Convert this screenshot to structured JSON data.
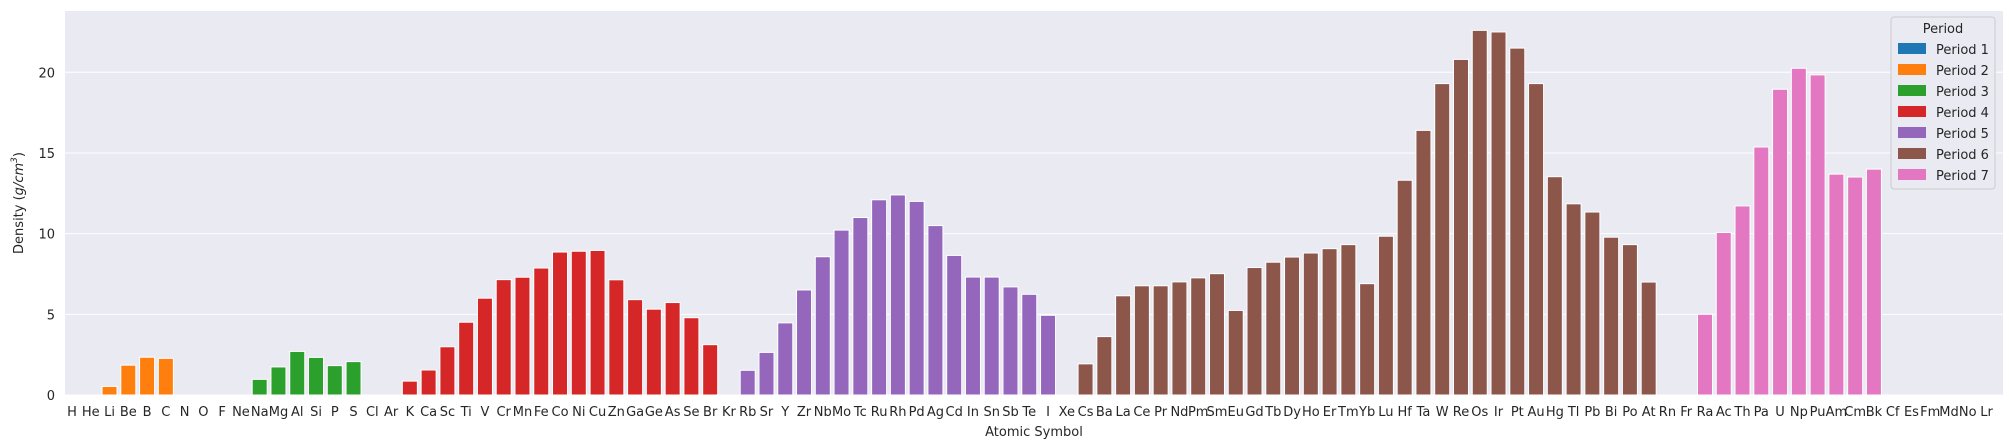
{
  "chart_data": {
    "type": "bar",
    "xlabel": "Atomic Symbol",
    "ylabel_prefix": "Density (",
    "ylabel_unit": "g/cm",
    "ylabel_exp": "3",
    "ylabel_suffix": ")",
    "ylim": [
      0,
      23.8
    ],
    "yticks": [
      0,
      5,
      10,
      15,
      20
    ],
    "grid": true,
    "legend": {
      "title": "Period",
      "placement": "top-right",
      "entries": [
        {
          "label": "Period 1",
          "period": 1,
          "color": "#1f77b4"
        },
        {
          "label": "Period 2",
          "period": 2,
          "color": "#ff7f0e"
        },
        {
          "label": "Period 3",
          "period": 3,
          "color": "#2ca02c"
        },
        {
          "label": "Period 4",
          "period": 4,
          "color": "#d62728"
        },
        {
          "label": "Period 5",
          "period": 5,
          "color": "#9467bd"
        },
        {
          "label": "Period 6",
          "period": 6,
          "color": "#8c564b"
        },
        {
          "label": "Period 7",
          "period": 7,
          "color": "#e377c2"
        }
      ]
    },
    "categories": [
      "H",
      "He",
      "Li",
      "Be",
      "B",
      "C",
      "N",
      "O",
      "F",
      "Ne",
      "Na",
      "Mg",
      "Al",
      "Si",
      "P",
      "S",
      "Cl",
      "Ar",
      "K",
      "Ca",
      "Sc",
      "Ti",
      "V",
      "Cr",
      "Mn",
      "Fe",
      "Co",
      "Ni",
      "Cu",
      "Zn",
      "Ga",
      "Ge",
      "As",
      "Se",
      "Br",
      "Kr",
      "Rb",
      "Sr",
      "Y",
      "Zr",
      "Nb",
      "Mo",
      "Tc",
      "Ru",
      "Rh",
      "Pd",
      "Ag",
      "Cd",
      "In",
      "Sn",
      "Sb",
      "Te",
      "I",
      "Xe",
      "Cs",
      "Ba",
      "La",
      "Ce",
      "Pr",
      "Nd",
      "Pm",
      "Sm",
      "Eu",
      "Gd",
      "Tb",
      "Dy",
      "Ho",
      "Er",
      "Tm",
      "Yb",
      "Lu",
      "Hf",
      "Ta",
      "W",
      "Re",
      "Os",
      "Ir",
      "Pt",
      "Au",
      "Hg",
      "Tl",
      "Pb",
      "Bi",
      "Po",
      "At",
      "Rn",
      "Fr",
      "Ra",
      "Ac",
      "Th",
      "Pa",
      "U",
      "Np",
      "Pu",
      "Am",
      "Cm",
      "Bk",
      "Cf",
      "Es",
      "Fm",
      "Md",
      "No",
      "Lr"
    ],
    "periods": [
      1,
      1,
      2,
      2,
      2,
      2,
      2,
      2,
      2,
      2,
      3,
      3,
      3,
      3,
      3,
      3,
      3,
      3,
      4,
      4,
      4,
      4,
      4,
      4,
      4,
      4,
      4,
      4,
      4,
      4,
      4,
      4,
      4,
      4,
      4,
      4,
      5,
      5,
      5,
      5,
      5,
      5,
      5,
      5,
      5,
      5,
      5,
      5,
      5,
      5,
      5,
      5,
      5,
      5,
      6,
      6,
      6,
      6,
      6,
      6,
      6,
      6,
      6,
      6,
      6,
      6,
      6,
      6,
      6,
      6,
      6,
      6,
      6,
      6,
      6,
      6,
      6,
      6,
      6,
      6,
      6,
      6,
      6,
      6,
      6,
      6,
      7,
      7,
      7,
      7,
      7,
      7,
      7,
      7,
      7,
      7,
      7,
      7,
      7,
      7,
      7,
      7,
      7
    ],
    "values": [
      0,
      0,
      0.53,
      1.85,
      2.34,
      2.27,
      0,
      0,
      0,
      0,
      0.97,
      1.74,
      2.7,
      2.33,
      1.82,
      2.07,
      0,
      0,
      0.86,
      1.55,
      2.99,
      4.51,
      6.0,
      7.15,
      7.3,
      7.87,
      8.86,
      8.91,
      8.96,
      7.14,
      5.91,
      5.32,
      5.73,
      4.79,
      3.12,
      0,
      1.53,
      2.64,
      4.47,
      6.51,
      8.57,
      10.22,
      11.0,
      12.1,
      12.4,
      12.0,
      10.5,
      8.65,
      7.31,
      7.31,
      6.7,
      6.24,
      4.94,
      0,
      1.93,
      3.62,
      6.15,
      6.77,
      6.77,
      7.01,
      7.26,
      7.52,
      5.24,
      7.9,
      8.23,
      8.55,
      8.8,
      9.07,
      9.32,
      6.9,
      9.84,
      13.31,
      16.4,
      19.3,
      20.8,
      22.6,
      22.5,
      21.5,
      19.3,
      13.53,
      11.85,
      11.34,
      9.78,
      9.32,
      7.0,
      0,
      0,
      5.0,
      10.07,
      11.72,
      15.37,
      18.95,
      20.25,
      19.84,
      13.69,
      13.51,
      14.0,
      0,
      0,
      0,
      0,
      0,
      0
    ]
  }
}
